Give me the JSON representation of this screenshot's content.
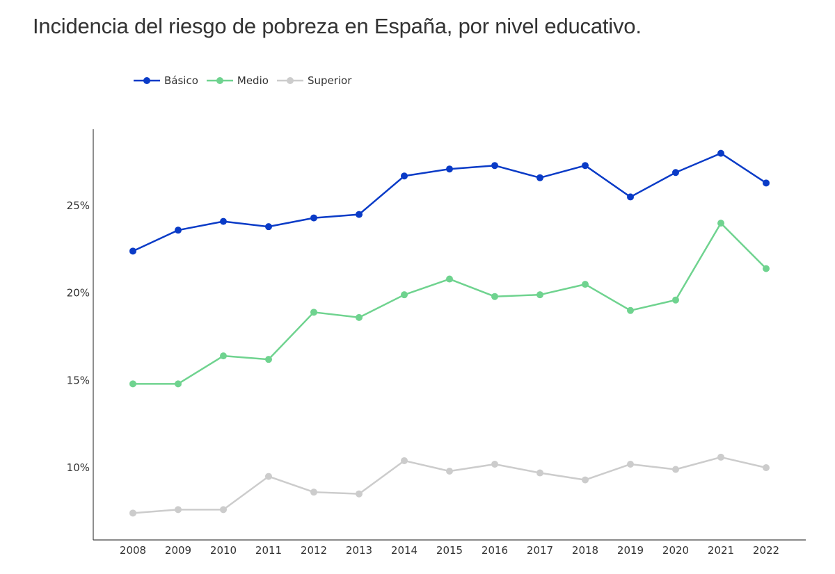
{
  "chart_data": {
    "type": "line",
    "title": "Incidencia del riesgo de pobreza en España, por nivel educativo.",
    "xlabel": "",
    "ylabel": "",
    "categories": [
      "2008",
      "2009",
      "2010",
      "2011",
      "2012",
      "2013",
      "2014",
      "2015",
      "2016",
      "2017",
      "2018",
      "2019",
      "2020",
      "2021",
      "2022"
    ],
    "ylim": [
      6.0,
      29.0
    ],
    "yticks": [
      10,
      15,
      20,
      25
    ],
    "ytick_labels": [
      "10%",
      "15%",
      "20%",
      "25%"
    ],
    "legend_position": "top-left",
    "grid": false,
    "series": [
      {
        "name": "Básico",
        "color": "#0a3bc7",
        "values": [
          22.4,
          23.6,
          24.1,
          23.8,
          24.3,
          24.5,
          26.7,
          27.1,
          27.3,
          26.6,
          27.3,
          25.5,
          26.9,
          28.0,
          26.3
        ]
      },
      {
        "name": "Medio",
        "color": "#6fd38f",
        "values": [
          14.8,
          14.8,
          16.4,
          16.2,
          18.9,
          18.6,
          19.9,
          20.8,
          19.8,
          19.9,
          20.5,
          19.0,
          19.6,
          24.0,
          21.4
        ]
      },
      {
        "name": "Superior",
        "color": "#cccccc",
        "values": [
          7.4,
          7.6,
          7.6,
          9.5,
          8.6,
          8.5,
          10.4,
          9.8,
          10.2,
          9.7,
          9.3,
          10.2,
          9.9,
          10.6,
          10.0
        ]
      }
    ]
  }
}
